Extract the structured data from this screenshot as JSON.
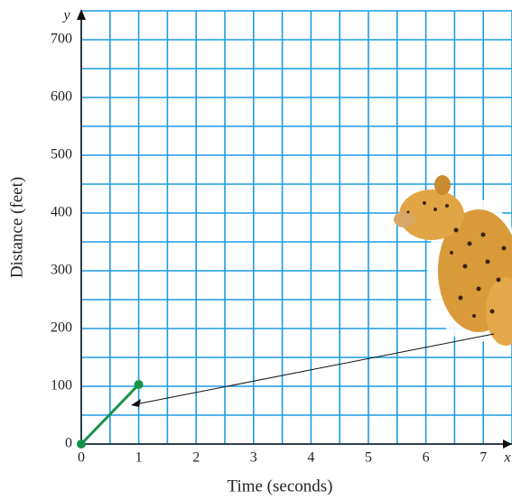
{
  "chart_data": {
    "type": "line",
    "x_label": "Time (seconds)",
    "y_label": "Distance (feet)",
    "x_axis_name": "x",
    "y_axis_name": "y",
    "x": [
      0,
      1
    ],
    "series": [
      {
        "color": "#17924a",
        "values": [
          0,
          103
        ]
      }
    ],
    "xlim": [
      0,
      7.5
    ],
    "ylim": [
      0,
      750
    ],
    "xticks": [
      0,
      1,
      2,
      3,
      4,
      5,
      6,
      7
    ],
    "yticks": [
      0,
      100,
      200,
      300,
      400,
      500,
      600,
      700
    ],
    "grid": true,
    "grid_color": "#1b9ce2"
  }
}
